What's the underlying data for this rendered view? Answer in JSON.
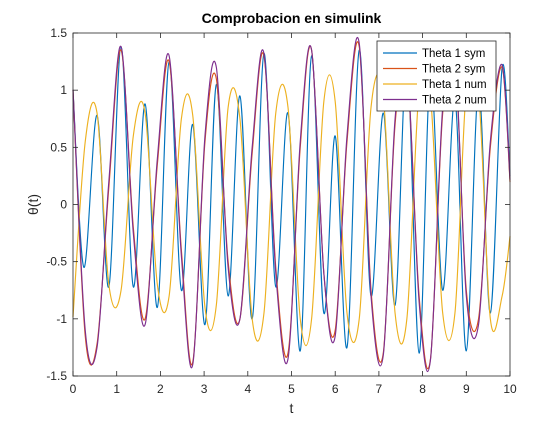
{
  "chart_data": {
    "type": "line",
    "title": "Comprobacion en simulink",
    "xlabel": "t",
    "ylabel": "θ(t)",
    "xlim": [
      0,
      10
    ],
    "ylim": [
      -1.5,
      1.5
    ],
    "xticks": [
      0,
      1,
      2,
      3,
      4,
      5,
      6,
      7,
      8,
      9,
      10
    ],
    "yticks": [
      -1.5,
      -1,
      -0.5,
      0,
      0.5,
      1,
      1.5
    ],
    "xtick_labels": [
      "0",
      "1",
      "2",
      "3",
      "4",
      "5",
      "6",
      "7",
      "8",
      "9",
      "10"
    ],
    "ytick_labels": [
      "-1.5",
      "-1",
      "-0.5",
      "0",
      "0.5",
      "1",
      "1.5"
    ],
    "grid": false,
    "legend_position": "top-right",
    "series": [
      {
        "name": "Theta 1 sym",
        "color": "#0072BD",
        "x": [
          0,
          0.25,
          0.55,
          0.82,
          1.1,
          1.38,
          1.65,
          1.93,
          2.2,
          2.48,
          2.74,
          3.02,
          3.28,
          3.55,
          3.82,
          4.1,
          4.37,
          4.64,
          4.92,
          5.2,
          5.46,
          5.74,
          6.0,
          6.27,
          6.55,
          6.82,
          7.1,
          7.37,
          7.64,
          7.92,
          8.18,
          8.46,
          8.74,
          9.0,
          9.28,
          9.55,
          9.82,
          10.0
        ],
        "y": [
          1.0,
          -0.55,
          0.78,
          -0.72,
          1.38,
          -0.72,
          0.88,
          -0.9,
          1.25,
          -0.75,
          0.7,
          -1.05,
          1.05,
          -0.8,
          0.95,
          -1.0,
          1.32,
          -0.72,
          0.8,
          -1.28,
          1.3,
          -0.95,
          0.6,
          -1.25,
          1.35,
          -0.8,
          0.8,
          -0.88,
          1.25,
          -1.3,
          1.15,
          -0.75,
          0.92,
          -1.28,
          1.02,
          -0.95,
          1.2,
          0.25
        ]
      },
      {
        "name": "Theta 2 sym",
        "color": "#D95319",
        "x": [
          0,
          0.28,
          0.55,
          0.82,
          1.1,
          1.38,
          1.65,
          1.93,
          2.2,
          2.48,
          2.74,
          3.02,
          3.28,
          3.55,
          3.82,
          4.1,
          4.37,
          4.64,
          4.92,
          5.2,
          5.46,
          5.74,
          6.0,
          6.27,
          6.55,
          6.82,
          7.1,
          7.37,
          7.64,
          7.92,
          8.18,
          8.46,
          8.74,
          9.0,
          9.28,
          9.55,
          9.82,
          10.0
        ],
        "y": [
          1.0,
          -1.15,
          -1.22,
          0.15,
          1.35,
          -0.2,
          -1.0,
          0.35,
          1.25,
          -0.4,
          -1.38,
          0.55,
          1.1,
          -0.5,
          -1.0,
          0.45,
          1.3,
          -0.55,
          -1.3,
          0.5,
          1.35,
          -0.6,
          -1.1,
          0.55,
          1.38,
          -0.75,
          -1.3,
          0.7,
          1.2,
          -0.8,
          -1.35,
          0.8,
          1.25,
          -0.75,
          -1.0,
          0.5,
          1.2,
          0.2
        ]
      },
      {
        "name": "Theta 1 num",
        "color": "#EDB120",
        "x": [
          0,
          0.28,
          0.55,
          0.82,
          1.1,
          1.38,
          1.65,
          1.93,
          2.2,
          2.48,
          2.74,
          3.02,
          3.28,
          3.55,
          3.82,
          4.1,
          4.37,
          4.64,
          4.92,
          5.2,
          5.46,
          5.74,
          6.0,
          6.27,
          6.55,
          6.82,
          7.1,
          7.37,
          7.64,
          7.92,
          8.18,
          8.46,
          8.74,
          9.0,
          9.28,
          9.55,
          9.82,
          10.0
        ],
        "y": [
          -0.98,
          0.55,
          0.8,
          -0.7,
          -0.75,
          0.6,
          0.8,
          -0.7,
          -0.8,
          0.75,
          0.78,
          -0.9,
          -0.88,
          0.85,
          0.75,
          -1.0,
          -0.95,
          0.8,
          0.85,
          -1.0,
          -1.0,
          0.9,
          0.9,
          -0.95,
          -1.0,
          0.85,
          0.95,
          -0.95,
          -1.0,
          1.0,
          0.95,
          -0.95,
          -0.95,
          1.0,
          0.98,
          -1.0,
          -0.8,
          -0.28
        ]
      },
      {
        "name": "Theta 2 num",
        "color": "#7E2F8E",
        "x": [
          0,
          0.28,
          0.55,
          0.82,
          1.1,
          1.38,
          1.65,
          1.93,
          2.2,
          2.48,
          2.74,
          3.02,
          3.28,
          3.55,
          3.82,
          4.1,
          4.37,
          4.64,
          4.92,
          5.2,
          5.46,
          5.74,
          6.0,
          6.27,
          6.55,
          6.82,
          7.1,
          7.37,
          7.64,
          7.92,
          8.18,
          8.46,
          8.74,
          9.0,
          9.28,
          9.55,
          9.82,
          10.0
        ],
        "y": [
          1.0,
          -1.1,
          -1.25,
          0.2,
          1.38,
          -0.25,
          -1.05,
          0.4,
          1.3,
          -0.45,
          -1.4,
          0.6,
          1.2,
          -0.55,
          -1.0,
          0.5,
          1.32,
          -0.6,
          -1.35,
          0.55,
          1.35,
          -0.6,
          -1.15,
          0.6,
          1.41,
          -0.8,
          -1.32,
          0.75,
          1.25,
          -0.85,
          -1.36,
          0.85,
          1.3,
          -0.8,
          -1.05,
          0.55,
          1.22,
          0.22
        ]
      }
    ]
  }
}
